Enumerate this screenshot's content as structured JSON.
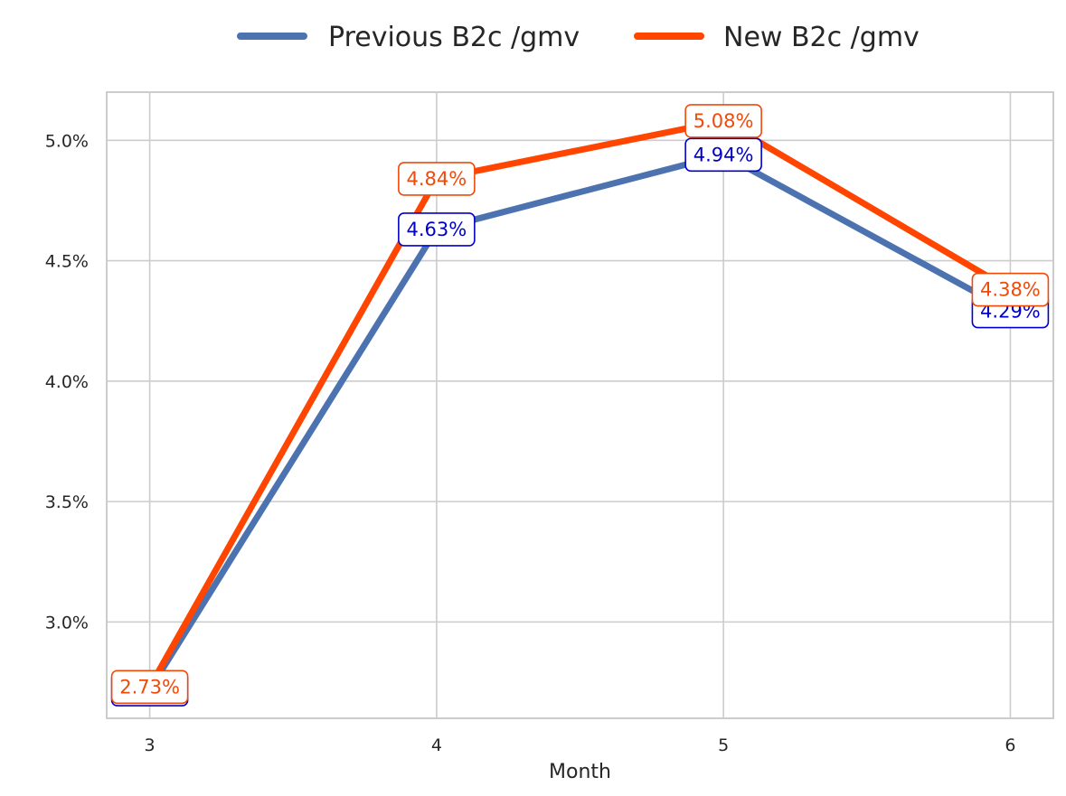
{
  "chart_data": {
    "type": "line",
    "xlabel": "Month",
    "ylabel": "",
    "x": [
      3,
      4,
      5,
      6
    ],
    "xlim": [
      2.85,
      6.15
    ],
    "ylim": [
      2.6,
      5.2
    ],
    "yticks": [
      3.0,
      3.5,
      4.0,
      4.5,
      5.0
    ],
    "ytick_labels": [
      "3.0%",
      "3.5%",
      "4.0%",
      "4.5%",
      "5.0%"
    ],
    "xtick_labels": [
      "3",
      "4",
      "5",
      "6"
    ],
    "grid": true,
    "legend_position": "top-center",
    "series": [
      {
        "name": "Previous B2c /gmv",
        "color": "#4c72b0",
        "label_color": "#0000cc",
        "values": [
          2.72,
          4.63,
          4.94,
          4.29
        ],
        "labels": [
          "2.72%",
          "4.63%",
          "4.94%",
          "4.29%"
        ]
      },
      {
        "name": "New B2c /gmv",
        "color": "#ff4500",
        "label_color": "#f04a0a",
        "values": [
          2.73,
          4.84,
          5.08,
          4.38
        ],
        "labels": [
          "2.73%",
          "4.84%",
          "5.08%",
          "4.38%"
        ]
      }
    ]
  }
}
